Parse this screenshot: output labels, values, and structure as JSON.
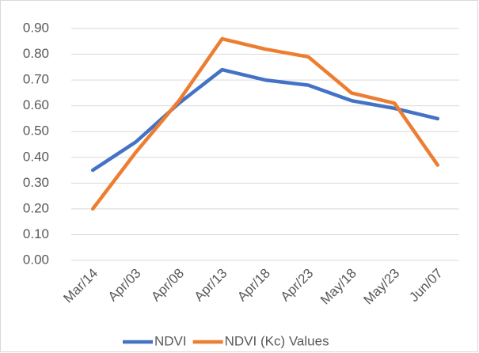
{
  "chart_data": {
    "type": "line",
    "categories": [
      "Mar/14",
      "Apr/03",
      "Apr/08",
      "Apr/13",
      "Apr/18",
      "Apr/23",
      "May/18",
      "May/23",
      "Jun/07"
    ],
    "series": [
      {
        "name": "NDVI",
        "color": "#4472c4",
        "values": [
          0.35,
          0.46,
          0.61,
          0.74,
          0.7,
          0.68,
          0.62,
          0.59,
          0.55
        ]
      },
      {
        "name": "NDVI (Kc) Values",
        "color": "#ed7d31",
        "values": [
          0.2,
          0.42,
          0.62,
          0.86,
          0.82,
          0.79,
          0.65,
          0.61,
          0.37
        ]
      }
    ],
    "ylim": [
      0,
      0.9
    ],
    "yticks": [
      {
        "value": 0,
        "label": "0.00"
      },
      {
        "value": 0.1,
        "label": "0.10"
      },
      {
        "value": 0.2,
        "label": "0.20"
      },
      {
        "value": 0.3,
        "label": "0.30"
      },
      {
        "value": 0.4,
        "label": "0.40"
      },
      {
        "value": 0.5,
        "label": "0.50"
      },
      {
        "value": 0.6,
        "label": "0.60"
      },
      {
        "value": 0.7,
        "label": "0.70"
      },
      {
        "value": 0.8,
        "label": "0.80"
      },
      {
        "value": 0.9,
        "label": "0.90"
      }
    ],
    "grid": true,
    "legend": "bottom"
  }
}
